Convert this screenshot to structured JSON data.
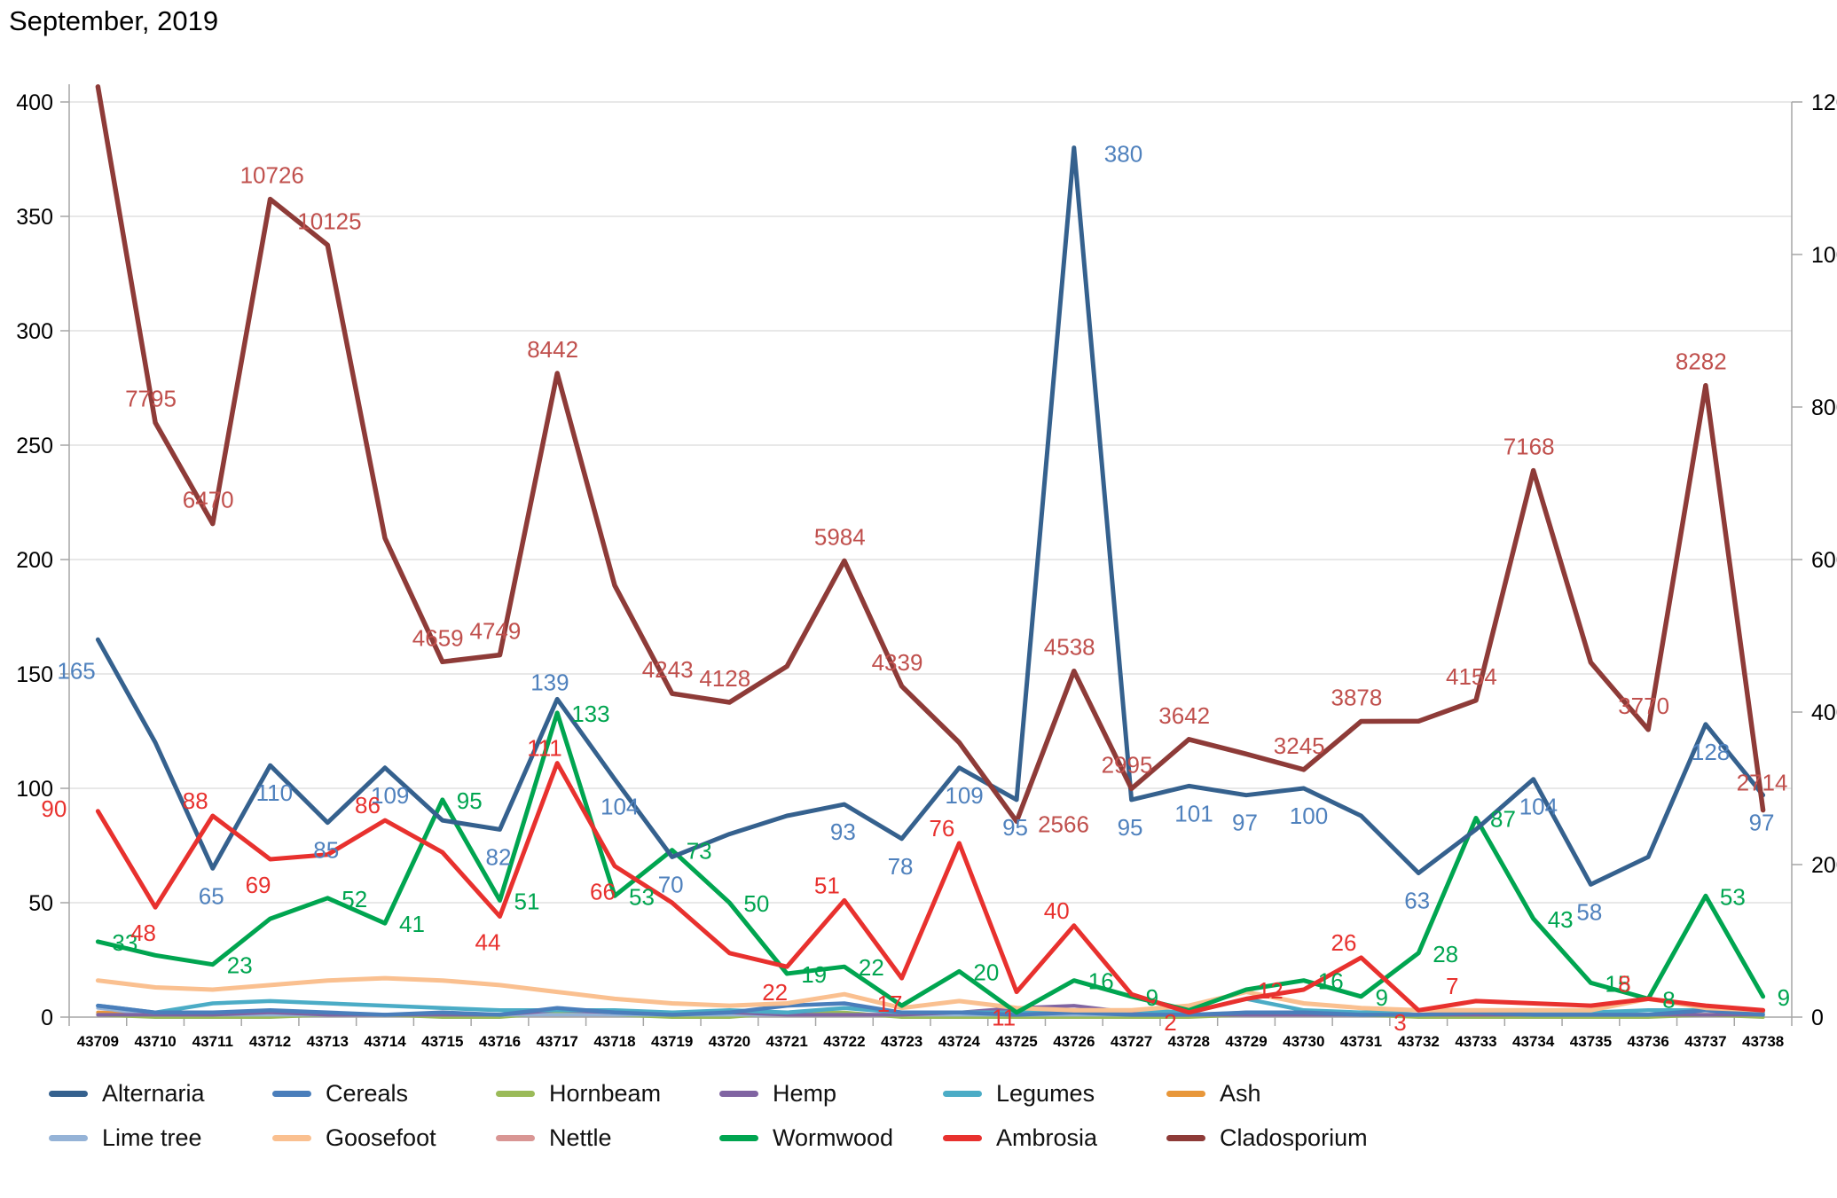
{
  "title": "September, 2019",
  "chart_data": {
    "type": "line",
    "title": "September, 2019",
    "x_categories": [
      "43709",
      "43710",
      "43711",
      "43712",
      "43713",
      "43714",
      "43715",
      "43716",
      "43717",
      "43718",
      "43719",
      "43720",
      "43721",
      "43722",
      "43723",
      "43724",
      "43725",
      "43726",
      "43727",
      "43728",
      "43729",
      "43730",
      "43731",
      "43732",
      "43733",
      "43734",
      "43735",
      "43736",
      "43737",
      "43738"
    ],
    "axes": {
      "left": {
        "min": 0,
        "max": 400,
        "step": 50,
        "tick_labels": [
          "0",
          "50",
          "100",
          "150",
          "200",
          "250",
          "300",
          "350",
          "400"
        ]
      },
      "right": {
        "min": 0,
        "max": 12000,
        "step": 2000,
        "tick_labels": [
          "0",
          "2000",
          "4000",
          "6000",
          "8000",
          "10000",
          "12000"
        ]
      }
    },
    "grid": true,
    "legend_position": "bottom",
    "legend_order": [
      "Alternaria",
      "Cereals",
      "Hornbeam",
      "Hemp",
      "Legumes",
      "Ash",
      "Lime tree",
      "Goosefoot",
      "Nettle",
      "Wormwood",
      "Ambrosia",
      "Cladosporium"
    ],
    "series": [
      {
        "name": "Nettle",
        "color": "#D99694",
        "axis": "left",
        "values": [
          2,
          2,
          1,
          1,
          1,
          1,
          1,
          1,
          1,
          1,
          1,
          1,
          1,
          1,
          1,
          1,
          1,
          1,
          1,
          1,
          1,
          1,
          1,
          1,
          1,
          1,
          1,
          1,
          1,
          1
        ],
        "point_labels": [
          null,
          null,
          null,
          null,
          null,
          null,
          null,
          null,
          null,
          null,
          null,
          null,
          null,
          null,
          null,
          null,
          null,
          null,
          null,
          null,
          null,
          null,
          null,
          null,
          null,
          null,
          null,
          null,
          null,
          null
        ]
      },
      {
        "name": "Ash",
        "color": "#E8973A",
        "axis": "left",
        "values": [
          2,
          1,
          1,
          1,
          1,
          1,
          1,
          1,
          1,
          1,
          1,
          1,
          1,
          1,
          1,
          1,
          1,
          1,
          1,
          1,
          2,
          1,
          1,
          1,
          1,
          1,
          1,
          1,
          1,
          1
        ],
        "point_labels": [
          null,
          null,
          null,
          null,
          null,
          null,
          null,
          null,
          null,
          null,
          null,
          null,
          null,
          null,
          null,
          null,
          null,
          null,
          null,
          null,
          null,
          null,
          null,
          null,
          null,
          null,
          null,
          null,
          null,
          null
        ]
      },
      {
        "name": "Hornbeam",
        "color": "#9BBB59",
        "axis": "left",
        "values": [
          1,
          0,
          0,
          0,
          1,
          1,
          0,
          0,
          2,
          1,
          0,
          0,
          2,
          2,
          0,
          0,
          0,
          0,
          0,
          0,
          1,
          2,
          1,
          0,
          0,
          0,
          0,
          0,
          1,
          0
        ],
        "point_labels": [
          null,
          null,
          null,
          null,
          null,
          null,
          null,
          null,
          null,
          null,
          null,
          null,
          null,
          null,
          null,
          null,
          null,
          null,
          null,
          null,
          null,
          null,
          null,
          null,
          null,
          null,
          null,
          null,
          null,
          null
        ]
      },
      {
        "name": "Lime tree",
        "color": "#95B3D7",
        "axis": "left",
        "values": [
          4,
          1,
          1,
          1,
          1,
          1,
          1,
          1,
          1,
          1,
          1,
          1,
          1,
          1,
          1,
          1,
          1,
          1,
          1,
          1,
          1,
          1,
          1,
          1,
          2,
          1,
          1,
          1,
          3,
          1
        ],
        "point_labels": [
          null,
          null,
          null,
          null,
          null,
          null,
          null,
          null,
          null,
          null,
          null,
          null,
          null,
          null,
          null,
          null,
          null,
          null,
          null,
          null,
          null,
          null,
          null,
          null,
          null,
          null,
          null,
          null,
          null,
          null
        ]
      },
      {
        "name": "Hemp",
        "color": "#8064A2",
        "axis": "left",
        "values": [
          1,
          1,
          1,
          2,
          1,
          1,
          1,
          1,
          3,
          2,
          1,
          2,
          1,
          1,
          1,
          2,
          4,
          5,
          2,
          1,
          1,
          1,
          1,
          1,
          1,
          1,
          1,
          1,
          1,
          1
        ],
        "point_labels": [
          null,
          null,
          null,
          null,
          null,
          null,
          null,
          null,
          null,
          null,
          null,
          null,
          null,
          null,
          null,
          null,
          null,
          null,
          null,
          null,
          null,
          null,
          null,
          null,
          null,
          null,
          null,
          null,
          null,
          null
        ]
      },
      {
        "name": "Legumes",
        "color": "#4BACC6",
        "axis": "left",
        "values": [
          5,
          2,
          6,
          7,
          6,
          5,
          4,
          3,
          3,
          3,
          2,
          3,
          2,
          4,
          2,
          2,
          2,
          2,
          3,
          2,
          8,
          3,
          2,
          3,
          3,
          2,
          2,
          3,
          3,
          2
        ],
        "point_labels": [
          null,
          null,
          null,
          null,
          null,
          null,
          null,
          null,
          null,
          null,
          null,
          null,
          null,
          null,
          null,
          null,
          null,
          null,
          null,
          null,
          null,
          null,
          null,
          null,
          null,
          null,
          null,
          null,
          null,
          null
        ]
      },
      {
        "name": "Cereals",
        "color": "#4A7EBB",
        "axis": "left",
        "values": [
          5,
          2,
          2,
          3,
          2,
          1,
          2,
          1,
          4,
          2,
          1,
          2,
          5,
          6,
          2,
          2,
          1,
          2,
          1,
          1,
          2,
          2,
          1,
          1,
          2,
          1,
          1,
          1,
          3,
          1
        ],
        "point_labels": [
          null,
          null,
          null,
          null,
          null,
          null,
          null,
          null,
          null,
          null,
          null,
          null,
          null,
          null,
          null,
          null,
          null,
          null,
          null,
          null,
          null,
          null,
          null,
          null,
          null,
          null,
          null,
          null,
          null,
          null
        ]
      },
      {
        "name": "Goosefoot",
        "color": "#FAC090",
        "axis": "left",
        "values": [
          16,
          13,
          12,
          14,
          16,
          17,
          16,
          14,
          11,
          8,
          6,
          5,
          6,
          10,
          4,
          7,
          4,
          3,
          3,
          5,
          11,
          6,
          4,
          3,
          3,
          3,
          3,
          8,
          4,
          3
        ],
        "point_labels": [
          null,
          null,
          null,
          null,
          null,
          null,
          null,
          null,
          null,
          null,
          null,
          null,
          null,
          null,
          null,
          null,
          null,
          null,
          null,
          null,
          null,
          null,
          null,
          null,
          null,
          null,
          null,
          null,
          null,
          null
        ]
      },
      {
        "name": "Wormwood",
        "color": "#00A550",
        "label_color": "#00A550",
        "axis": "left",
        "values": [
          33,
          27,
          23,
          43,
          52,
          41,
          95,
          51,
          133,
          53,
          73,
          50,
          19,
          22,
          5,
          20,
          2,
          16,
          9,
          3,
          12,
          16,
          9,
          28,
          87,
          43,
          15,
          8,
          53,
          9
        ],
        "point_labels": [
          33,
          null,
          23,
          null,
          52,
          41,
          95,
          51,
          133,
          53,
          73,
          50,
          19,
          22,
          null,
          20,
          null,
          16,
          9,
          null,
          null,
          16,
          9,
          28,
          87,
          43,
          15,
          8,
          53,
          9
        ]
      },
      {
        "name": "Alternaria",
        "color": "#35618E",
        "label_color": "#4F81BD",
        "axis": "left",
        "values": [
          165,
          120,
          65,
          110,
          85,
          109,
          86,
          82,
          139,
          104,
          70,
          80,
          88,
          93,
          78,
          109,
          95,
          380,
          95,
          101,
          97,
          100,
          88,
          63,
          82,
          104,
          58,
          70,
          128,
          97
        ],
        "point_labels": [
          165,
          null,
          65,
          110,
          85,
          109,
          null,
          82,
          139,
          104,
          70,
          null,
          null,
          93,
          78,
          109,
          95,
          380,
          95,
          101,
          97,
          100,
          null,
          63,
          null,
          104,
          58,
          null,
          128,
          97
        ]
      },
      {
        "name": "Ambrosia",
        "color": "#E8312E",
        "label_color": "#E8312E",
        "axis": "left",
        "values": [
          90,
          48,
          88,
          69,
          71,
          86,
          72,
          44,
          111,
          66,
          50,
          28,
          22,
          51,
          17,
          76,
          11,
          40,
          10,
          2,
          8,
          12,
          26,
          3,
          7,
          6,
          5,
          8,
          5,
          3
        ],
        "point_labels": [
          90,
          48,
          88,
          69,
          null,
          86,
          null,
          44,
          111,
          66,
          null,
          null,
          22,
          51,
          17,
          76,
          11,
          40,
          null,
          2,
          null,
          12,
          26,
          3,
          7,
          null,
          null,
          8,
          null,
          null
        ]
      },
      {
        "name": "Cladosporium",
        "color": "#8E3B38",
        "label_color": "#C0504D",
        "axis": "right",
        "values": [
          12200,
          7795,
          6470,
          10726,
          10125,
          6280,
          4659,
          4749,
          8442,
          5660,
          4243,
          4128,
          4600,
          5984,
          4339,
          3600,
          2566,
          4538,
          2995,
          3642,
          3450,
          3245,
          3878,
          3880,
          4154,
          7168,
          4650,
          3770,
          8282,
          2714
        ],
        "point_labels": [
          null,
          7795,
          6470,
          10726,
          10125,
          null,
          4659,
          4749,
          8442,
          null,
          4243,
          4128,
          null,
          5984,
          4339,
          null,
          2566,
          4538,
          2995,
          3642,
          null,
          3245,
          3878,
          null,
          4154,
          7168,
          null,
          3770,
          8282,
          2714
        ]
      }
    ]
  }
}
